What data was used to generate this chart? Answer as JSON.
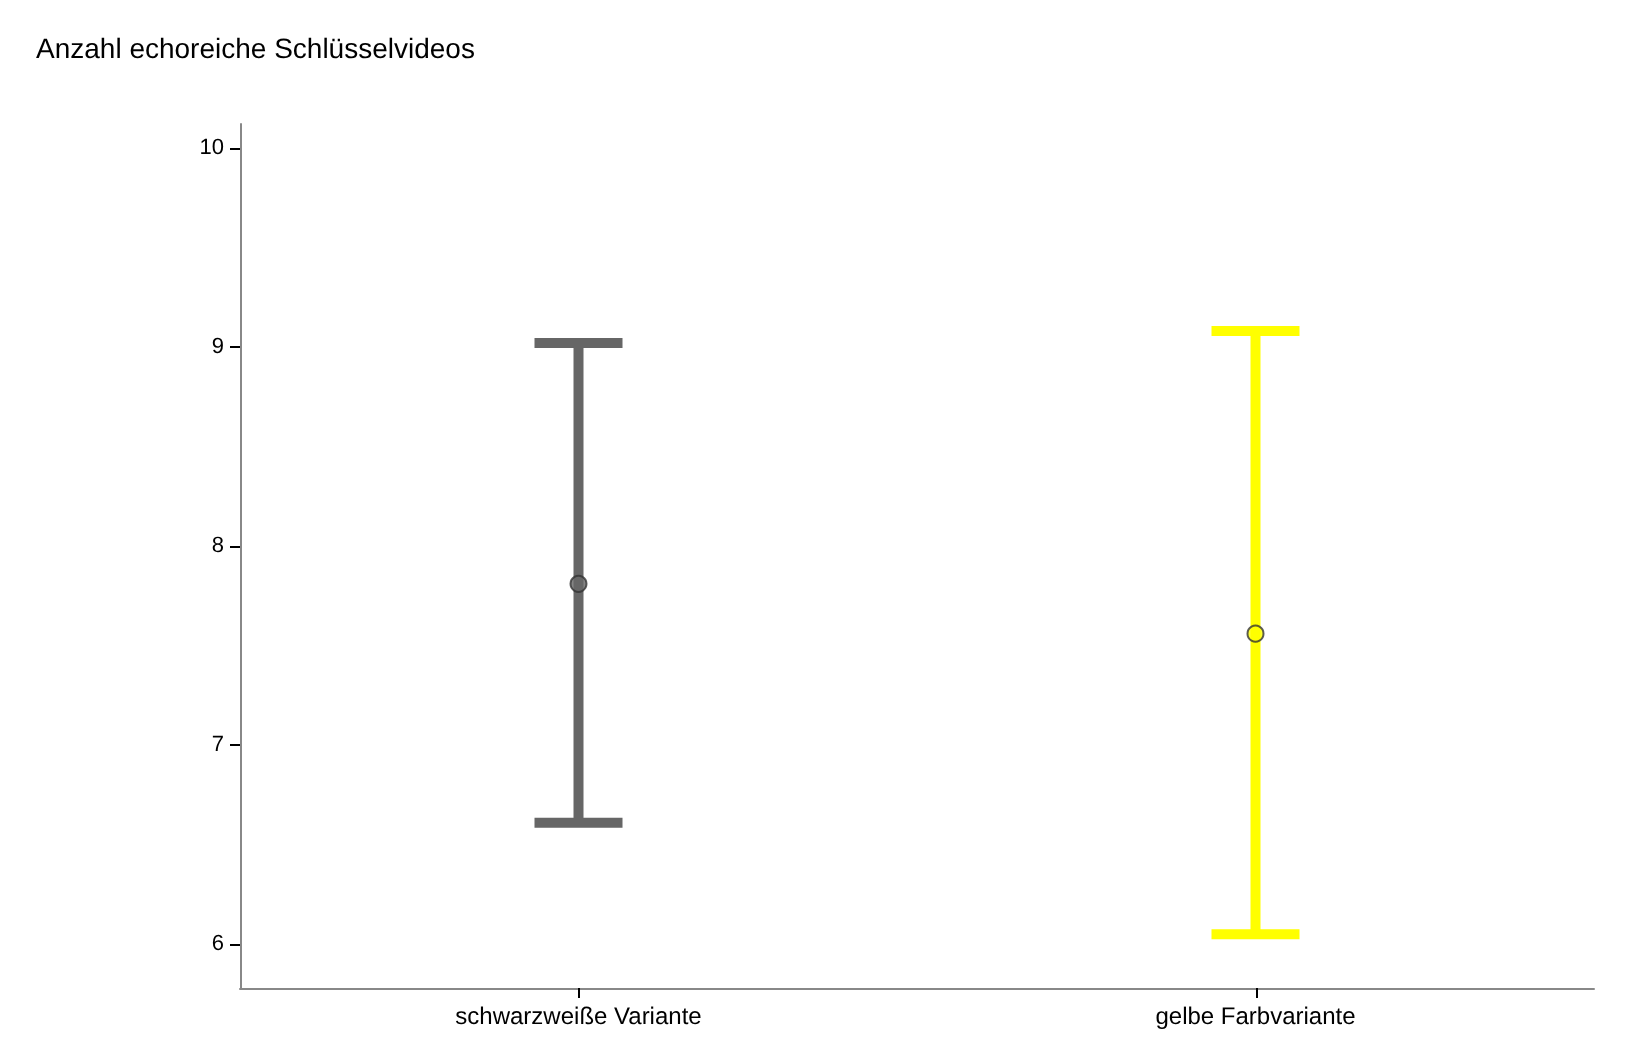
{
  "chart_data": {
    "type": "scatter",
    "title": "Anzahl echoreiche Schlüsselvideos",
    "categories": [
      "schwarzweiße Variante",
      "gelbe Farbvariante"
    ],
    "values": [
      7.81,
      7.56
    ],
    "errors": [
      [
        6.61,
        9.02
      ],
      [
        6.05,
        9.08
      ]
    ],
    "colors": [
      "#666666",
      "#ffff00"
    ],
    "ylim": [
      5.78,
      10.12
    ],
    "yticks": [
      6,
      7,
      8,
      9,
      10
    ],
    "marker": "circle",
    "grid": false
  }
}
